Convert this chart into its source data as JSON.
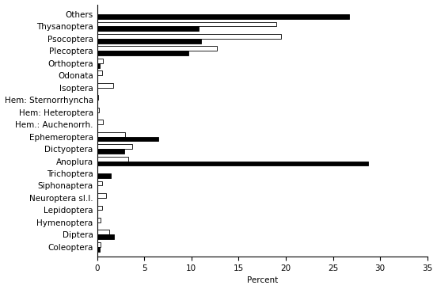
{
  "categories": [
    "Others",
    "Thysanoptera",
    "Psocoptera",
    "Plecoptera",
    "Orthoptera",
    "Odonata",
    "Isoptera",
    "Hem: Sternorrhyncha",
    "Hem: Heteroptera",
    "Hem.: Auchenorrh.",
    "Ephemeroptera",
    "Dictyoptera",
    "Anoplura",
    "Trichoptera",
    "Siphonaptera",
    "Neuroptera sl.l.",
    "Lepidoptera",
    "Hymenoptera",
    "Diptera",
    "Coleoptera"
  ],
  "black_bars": [
    0.3,
    1.8,
    0.0,
    0.0,
    0.0,
    0.0,
    1.5,
    28.7,
    2.9,
    6.5,
    0.0,
    0.0,
    0.0,
    0.0,
    0.0,
    0.3,
    9.7,
    11.0,
    10.8,
    26.7
  ],
  "white_bars": [
    0.4,
    1.3,
    0.4,
    0.5,
    1.0,
    0.5,
    0.0,
    3.3,
    3.7,
    3.0,
    0.6,
    0.2,
    0.1,
    1.7,
    0.5,
    0.6,
    12.7,
    19.5,
    19.0,
    0.0
  ],
  "xlim": [
    0,
    35
  ],
  "xticks": [
    0,
    5,
    10,
    15,
    20,
    25,
    30,
    35
  ],
  "xlabel": "Percent",
  "bar_height": 0.38,
  "black_color": "#000000",
  "white_color": "#ffffff",
  "edge_color": "#000000",
  "background_color": "#ffffff",
  "fontsize": 7.5
}
